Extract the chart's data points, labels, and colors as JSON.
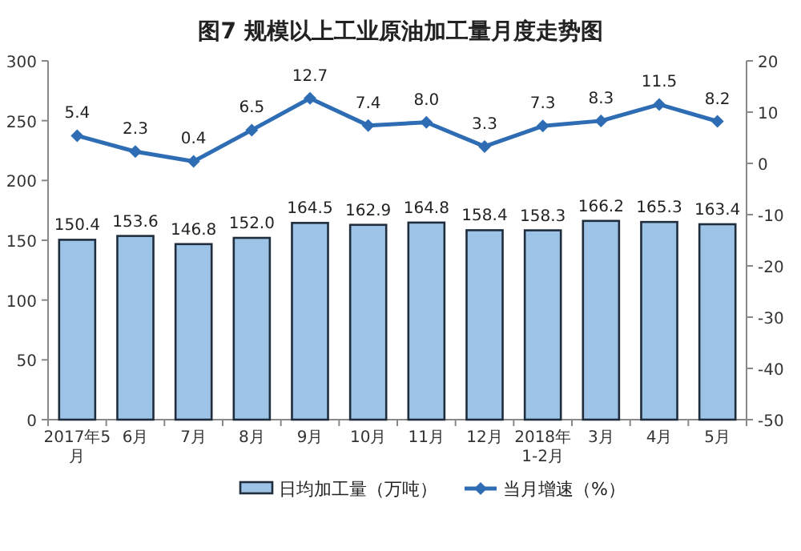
{
  "chart_data": {
    "type": "bar",
    "title": "图7  规模以上工业原油加工量月度走势图",
    "categories": [
      "2017年5\n月",
      "6月",
      "7月",
      "8月",
      "9月",
      "10月",
      "11月",
      "12月",
      "2018年\n1-2月",
      "3月",
      "4月",
      "5月"
    ],
    "series": [
      {
        "name": "日均加工量（万吨）",
        "color": "#9dc3e6",
        "values": [
          150.4,
          153.6,
          146.8,
          152.0,
          164.5,
          162.9,
          164.8,
          158.4,
          158.3,
          166.2,
          165.3,
          163.4
        ],
        "value_labels": [
          "150.4",
          "153.6",
          "146.8",
          "152.0",
          "164.5",
          "162.9",
          "164.8",
          "158.4",
          "158.3",
          "166.2",
          "165.3",
          "163.4"
        ]
      },
      {
        "name": "当月增速（%）",
        "type": "line",
        "axis": "y2",
        "color": "#2e6db4",
        "marker": "diamond",
        "values": [
          5.4,
          2.3,
          0.4,
          6.5,
          12.7,
          7.4,
          8.0,
          3.3,
          7.3,
          8.3,
          11.5,
          8.2
        ],
        "value_labels": [
          "5.4",
          "2.3",
          "0.4",
          "6.5",
          "12.7",
          "7.4",
          "8.0",
          "3.3",
          "7.3",
          "8.3",
          "11.5",
          "8.2"
        ]
      }
    ],
    "ylim": [
      0,
      300
    ],
    "yticks": [
      0,
      50,
      100,
      150,
      200,
      250,
      300
    ],
    "y2lim": [
      -50,
      20
    ],
    "y2ticks": [
      -50,
      -40,
      -30,
      -20,
      -10,
      0,
      10,
      20
    ],
    "grid": false,
    "legend": "bottom"
  }
}
